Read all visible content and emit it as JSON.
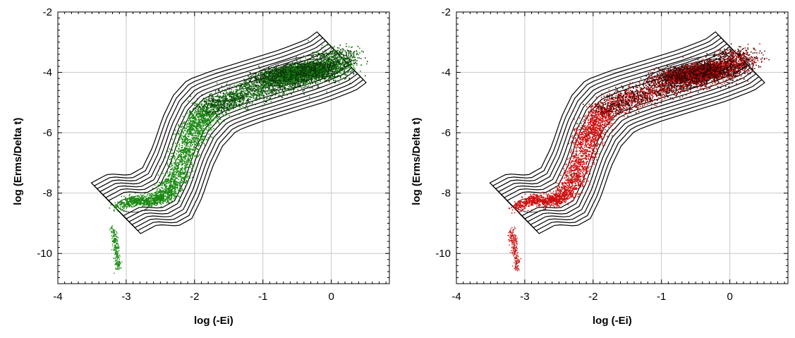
{
  "chart_data": [
    {
      "type": "scatter",
      "title": "",
      "xlabel": "log (-Ei)",
      "ylabel": "log (Erms/Delta t)",
      "xlim": [
        -4,
        0.85
      ],
      "ylim": [
        -11,
        -2
      ],
      "xticks": [
        -4,
        -3,
        -2,
        -1,
        0
      ],
      "yticks": [
        -10,
        -8,
        -6,
        -4,
        -2
      ],
      "grid": true,
      "legend": "none",
      "overlay": "density contours (black)",
      "point_color": "#1a8a12",
      "dense_color": "#0c3a0a",
      "spine": [
        [
          -3.15,
          -8.5
        ],
        [
          -2.9,
          -8.2
        ],
        [
          -2.6,
          -8.25
        ],
        [
          -2.4,
          -8.0
        ],
        [
          -2.25,
          -7.3
        ],
        [
          -2.1,
          -6.3
        ],
        [
          -1.95,
          -5.6
        ],
        [
          -1.75,
          -5.1
        ],
        [
          -1.4,
          -4.8
        ],
        [
          -0.9,
          -4.45
        ],
        [
          -0.4,
          -4.1
        ],
        [
          0.0,
          -3.75
        ],
        [
          0.15,
          -3.5
        ]
      ],
      "cluster_center": [
        -0.5,
        -4.0
      ],
      "outlier_tail": [
        [
          -3.2,
          -9.2
        ],
        [
          -3.15,
          -9.8
        ],
        [
          -3.12,
          -10.5
        ]
      ]
    },
    {
      "type": "scatter",
      "title": "",
      "xlabel": "log (-Ei)",
      "ylabel": "log (Erms/Delta t)",
      "xlim": [
        -4,
        0.85
      ],
      "ylim": [
        -11,
        -2
      ],
      "xticks": [
        -4,
        -3,
        -2,
        -1,
        0
      ],
      "yticks": [
        -10,
        -8,
        -6,
        -4,
        -2
      ],
      "grid": true,
      "legend": "none",
      "overlay": "density contours (black)",
      "point_color": "#cc1010",
      "dense_color": "#3a0505",
      "spine": [
        [
          -3.15,
          -8.5
        ],
        [
          -2.9,
          -8.2
        ],
        [
          -2.6,
          -8.25
        ],
        [
          -2.4,
          -8.0
        ],
        [
          -2.25,
          -7.3
        ],
        [
          -2.1,
          -6.3
        ],
        [
          -1.95,
          -5.6
        ],
        [
          -1.75,
          -5.1
        ],
        [
          -1.4,
          -4.8
        ],
        [
          -0.9,
          -4.45
        ],
        [
          -0.4,
          -4.1
        ],
        [
          0.0,
          -3.75
        ],
        [
          0.15,
          -3.5
        ]
      ],
      "cluster_center": [
        -0.5,
        -4.0
      ],
      "outlier_tail": [
        [
          -3.2,
          -9.2
        ],
        [
          -3.15,
          -9.8
        ],
        [
          -3.12,
          -10.5
        ]
      ]
    }
  ]
}
